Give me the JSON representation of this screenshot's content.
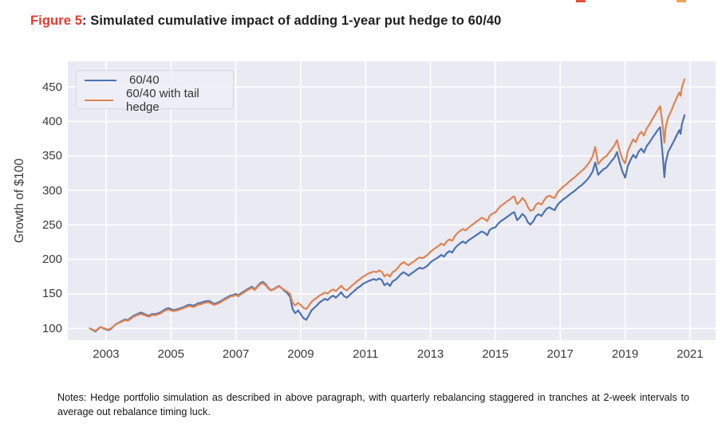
{
  "decorations": {
    "cropped_red_mark_color": "#e85038",
    "cropped_orange_mark_color": "#f2a254"
  },
  "title": {
    "label": "Figure 5",
    "separator": ": ",
    "text": "Simulated cumulative impact of adding 1-year put hedge to 60/40",
    "label_color": "#e8392e"
  },
  "notes": {
    "text": "Notes: Hedge portfolio simulation as described in above paragraph, with quarterly rebalancing staggered in tranches at 2-week intervals to average out rebalance timing luck."
  },
  "chart_data": {
    "type": "line",
    "title": "Figure 5: Simulated cumulative impact of adding 1-year put hedge to 60/40",
    "xlabel": "",
    "ylabel": "Growth of $100",
    "bg": "#eaeaf2",
    "grid_color": "#ffffff",
    "grid": true,
    "legend_position": "upper-left",
    "xlim": [
      2001.82,
      2021.79
    ],
    "ylim": [
      83,
      487
    ],
    "xticks": [
      2003,
      2005,
      2007,
      2009,
      2011,
      2013,
      2015,
      2017,
      2019,
      2021
    ],
    "yticks": [
      100,
      150,
      200,
      250,
      300,
      350,
      400,
      450
    ],
    "x": [
      2002.5,
      2002.58,
      2002.67,
      2002.75,
      2002.83,
      2002.92,
      2003.0,
      2003.08,
      2003.17,
      2003.25,
      2003.33,
      2003.42,
      2003.5,
      2003.58,
      2003.67,
      2003.75,
      2003.83,
      2003.92,
      2004.0,
      2004.08,
      2004.17,
      2004.25,
      2004.33,
      2004.42,
      2004.5,
      2004.58,
      2004.67,
      2004.75,
      2004.83,
      2004.92,
      2005.0,
      2005.08,
      2005.17,
      2005.25,
      2005.33,
      2005.42,
      2005.5,
      2005.58,
      2005.67,
      2005.75,
      2005.83,
      2005.92,
      2006.0,
      2006.08,
      2006.17,
      2006.25,
      2006.33,
      2006.42,
      2006.5,
      2006.58,
      2006.67,
      2006.75,
      2006.83,
      2006.92,
      2007.0,
      2007.08,
      2007.17,
      2007.25,
      2007.33,
      2007.42,
      2007.5,
      2007.58,
      2007.67,
      2007.75,
      2007.83,
      2007.92,
      2008.0,
      2008.08,
      2008.17,
      2008.25,
      2008.33,
      2008.42,
      2008.5,
      2008.58,
      2008.67,
      2008.75,
      2008.83,
      2008.92,
      2009.0,
      2009.08,
      2009.17,
      2009.25,
      2009.33,
      2009.42,
      2009.5,
      2009.58,
      2009.67,
      2009.75,
      2009.83,
      2009.92,
      2010.0,
      2010.08,
      2010.17,
      2010.25,
      2010.33,
      2010.42,
      2010.5,
      2010.58,
      2010.67,
      2010.75,
      2010.83,
      2010.92,
      2011.0,
      2011.08,
      2011.17,
      2011.25,
      2011.33,
      2011.42,
      2011.5,
      2011.58,
      2011.67,
      2011.75,
      2011.83,
      2011.92,
      2012.0,
      2012.08,
      2012.17,
      2012.25,
      2012.33,
      2012.42,
      2012.5,
      2012.58,
      2012.67,
      2012.75,
      2012.83,
      2012.92,
      2013.0,
      2013.08,
      2013.17,
      2013.25,
      2013.33,
      2013.42,
      2013.5,
      2013.58,
      2013.67,
      2013.75,
      2013.83,
      2013.92,
      2014.0,
      2014.08,
      2014.17,
      2014.25,
      2014.33,
      2014.42,
      2014.5,
      2014.58,
      2014.67,
      2014.75,
      2014.83,
      2014.92,
      2015.0,
      2015.08,
      2015.17,
      2015.25,
      2015.33,
      2015.42,
      2015.5,
      2015.58,
      2015.67,
      2015.75,
      2015.83,
      2015.92,
      2016.0,
      2016.08,
      2016.17,
      2016.25,
      2016.33,
      2016.42,
      2016.5,
      2016.58,
      2016.67,
      2016.75,
      2016.83,
      2016.92,
      2017.0,
      2017.08,
      2017.17,
      2017.25,
      2017.33,
      2017.42,
      2017.5,
      2017.58,
      2017.67,
      2017.75,
      2017.83,
      2017.92,
      2018.0,
      2018.08,
      2018.17,
      2018.25,
      2018.33,
      2018.42,
      2018.5,
      2018.58,
      2018.67,
      2018.75,
      2018.83,
      2018.92,
      2019.0,
      2019.08,
      2019.17,
      2019.25,
      2019.33,
      2019.42,
      2019.5,
      2019.58,
      2019.67,
      2019.75,
      2019.83,
      2019.92,
      2020.0,
      2020.08,
      2020.17,
      2020.21,
      2020.25,
      2020.33,
      2020.42,
      2020.5,
      2020.58,
      2020.67,
      2020.71,
      2020.75,
      2020.79,
      2020.83
    ],
    "series": [
      {
        "name": "60/40",
        "color": "#4c72b0",
        "values": [
          100,
          98,
          95.5,
          99,
          102,
          100,
          98.5,
          97.5,
          100,
          104,
          107,
          109,
          111,
          113,
          112,
          115,
          118,
          120,
          121.5,
          123,
          121,
          119.5,
          118.5,
          121,
          120.5,
          121.5,
          123,
          125.5,
          128,
          129.5,
          128,
          126.5,
          127.5,
          128.5,
          130,
          131.5,
          133.5,
          134.5,
          133,
          134,
          136.5,
          137,
          138.5,
          139.5,
          140,
          138,
          135.5,
          137,
          138.5,
          141,
          143.5,
          145.5,
          147.5,
          148.5,
          150,
          148,
          151.5,
          153.5,
          156,
          158.5,
          160.5,
          156.5,
          161.5,
          165.5,
          167.5,
          164,
          159,
          155.5,
          157,
          159.5,
          161.5,
          158,
          154.5,
          151.5,
          146,
          128,
          122,
          126,
          121,
          115,
          112.5,
          119,
          126,
          130,
          133.5,
          137.5,
          140.5,
          143,
          141,
          145.5,
          147.5,
          144.5,
          148.5,
          152.5,
          147,
          144.5,
          148,
          151.5,
          155,
          158.5,
          161,
          164.5,
          166.5,
          168.5,
          170,
          171.5,
          170,
          172.5,
          170,
          162.5,
          165.5,
          161.5,
          168,
          170.5,
          174,
          178.5,
          181.5,
          179,
          176.5,
          180,
          182.5,
          185.5,
          188,
          186.5,
          188.5,
          191.5,
          195.5,
          198.5,
          201,
          203.5,
          206.5,
          204,
          209,
          212,
          210,
          216,
          220,
          223.5,
          226,
          223.5,
          227.5,
          230,
          232.5,
          235.5,
          238,
          240.5,
          238.5,
          235,
          243,
          245.5,
          246.5,
          251.5,
          255.5,
          258,
          260.5,
          263.5,
          266.5,
          268.5,
          257,
          260.5,
          266,
          262,
          254,
          250.5,
          255.5,
          262.5,
          265.5,
          263,
          268.5,
          273.5,
          275.5,
          273,
          271.5,
          279.5,
          283,
          286.5,
          289.5,
          292.5,
          295.5,
          298.5,
          301.5,
          305,
          308,
          311.5,
          315.5,
          321,
          327.5,
          340.5,
          322.5,
          327,
          330.5,
          333,
          337.5,
          342.5,
          347.5,
          355.5,
          341,
          327,
          318.5,
          335,
          344.5,
          351.5,
          347,
          356.5,
          360.5,
          355,
          364.5,
          369.5,
          375.5,
          381.5,
          387,
          391.5,
          345,
          319,
          340,
          356,
          364,
          371,
          379,
          387.5,
          382,
          396,
          402,
          409
        ]
      },
      {
        "name": "60/40 with tail hedge",
        "color": "#dd8452",
        "values": [
          100,
          98.5,
          96.5,
          99.5,
          102,
          100.5,
          99,
          98.5,
          100.5,
          104,
          106.5,
          108.5,
          110,
          112,
          111,
          113.5,
          116.5,
          118.5,
          120,
          121,
          119.5,
          118,
          117,
          119.5,
          119,
          120,
          121.5,
          124,
          126,
          127.5,
          126,
          125,
          126,
          127,
          128.5,
          130,
          131.5,
          132.5,
          131,
          132,
          134.5,
          135,
          136.5,
          137.5,
          138,
          136,
          134,
          135.5,
          137,
          139.5,
          142,
          144,
          146,
          147,
          148.5,
          146.5,
          150,
          152,
          154.5,
          157,
          159,
          155.5,
          160.5,
          164,
          165.5,
          162.5,
          158,
          155,
          156.5,
          159,
          161,
          158,
          155.5,
          153.5,
          150,
          137,
          133.5,
          137,
          134,
          130,
          128,
          133,
          138.5,
          142,
          144.5,
          147.5,
          150,
          152,
          150.5,
          154.5,
          156.5,
          154,
          158,
          162,
          157.5,
          155,
          158.5,
          162,
          165.5,
          169,
          171.5,
          175,
          177,
          179.5,
          181,
          182.5,
          181.5,
          184,
          182,
          175.5,
          178.5,
          175,
          181.5,
          184,
          188,
          193,
          196,
          193.5,
          191.5,
          195,
          197.5,
          200.5,
          203,
          201.5,
          204,
          207,
          211,
          214,
          217,
          219.5,
          223,
          220.5,
          226,
          229,
          227,
          233.5,
          238,
          241.5,
          244,
          242,
          246,
          249,
          251.5,
          255,
          257.5,
          260.5,
          258.5,
          255.5,
          263.5,
          266.5,
          268,
          273,
          277.5,
          280,
          283,
          286,
          289,
          291.5,
          280,
          283.5,
          289,
          284.5,
          276,
          270.5,
          272,
          279,
          282,
          279.5,
          285.5,
          290.5,
          292.5,
          290,
          289,
          297.5,
          301,
          305,
          308,
          311.5,
          315,
          318,
          321.5,
          325,
          328.5,
          332,
          336.5,
          342.5,
          349.5,
          363,
          338,
          343,
          347,
          349.5,
          354.5,
          359.5,
          365,
          373,
          358,
          345,
          339,
          356.5,
          366.5,
          374,
          370,
          380.5,
          385,
          379.5,
          390,
          395.5,
          402.5,
          409.5,
          416,
          422,
          390,
          369,
          391,
          406,
          415,
          424,
          433,
          442,
          437,
          449,
          455,
          461
        ]
      }
    ]
  }
}
